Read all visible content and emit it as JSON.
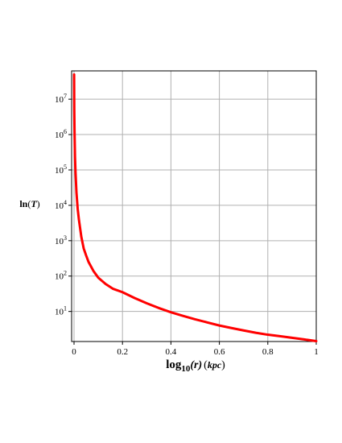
{
  "chart_data": {
    "type": "line",
    "title": "",
    "xlabel": {
      "base": "log",
      "sub": "10",
      "rest": "(r)",
      "unit": "kpc"
    },
    "ylabel": {
      "fn": "ln",
      "arg": "T"
    },
    "xlim": [
      0,
      1
    ],
    "ylim_log10": [
      0.15,
      7.8
    ],
    "yscale": "log",
    "grid": true,
    "legend": "none",
    "line_color": "#ff0000",
    "grid_color": "#b0b0b0",
    "x_ticks": [
      "0",
      "0.2",
      "0.4",
      "0.6",
      "0.8",
      "1"
    ],
    "x_tick_values": [
      0,
      0.2,
      0.4,
      0.6,
      0.8,
      1
    ],
    "y_ticks": [
      {
        "base": "10",
        "exp": "1",
        "value": 10
      },
      {
        "base": "10",
        "exp": "2",
        "value": 100
      },
      {
        "base": "10",
        "exp": "3",
        "value": 1000
      },
      {
        "base": "10",
        "exp": "4",
        "value": 10000
      },
      {
        "base": "10",
        "exp": "5",
        "value": 100000
      },
      {
        "base": "10",
        "exp": "6",
        "value": 1000000
      },
      {
        "base": "10",
        "exp": "7",
        "value": 10000000
      }
    ],
    "series": [
      {
        "x": [
          0.0003,
          0.001,
          0.002,
          0.004,
          0.006,
          0.01,
          0.015,
          0.02,
          0.03,
          0.04,
          0.05,
          0.06,
          0.08,
          0.1,
          0.13,
          0.16,
          0.2,
          0.25,
          0.3,
          0.35,
          0.4,
          0.45,
          0.5,
          0.55,
          0.6,
          0.65,
          0.7,
          0.75,
          0.8,
          0.85,
          0.9,
          0.95,
          1.0
        ],
        "y": [
          50000000,
          5000000,
          1300000,
          230000,
          90000,
          23000,
          8000,
          4000,
          1300,
          600,
          380,
          250,
          140,
          90,
          60,
          44,
          35,
          24,
          17,
          12.5,
          9.5,
          7.5,
          6.0,
          4.9,
          4.0,
          3.4,
          2.9,
          2.5,
          2.2,
          2.0,
          1.8,
          1.62,
          1.45
        ]
      }
    ]
  }
}
